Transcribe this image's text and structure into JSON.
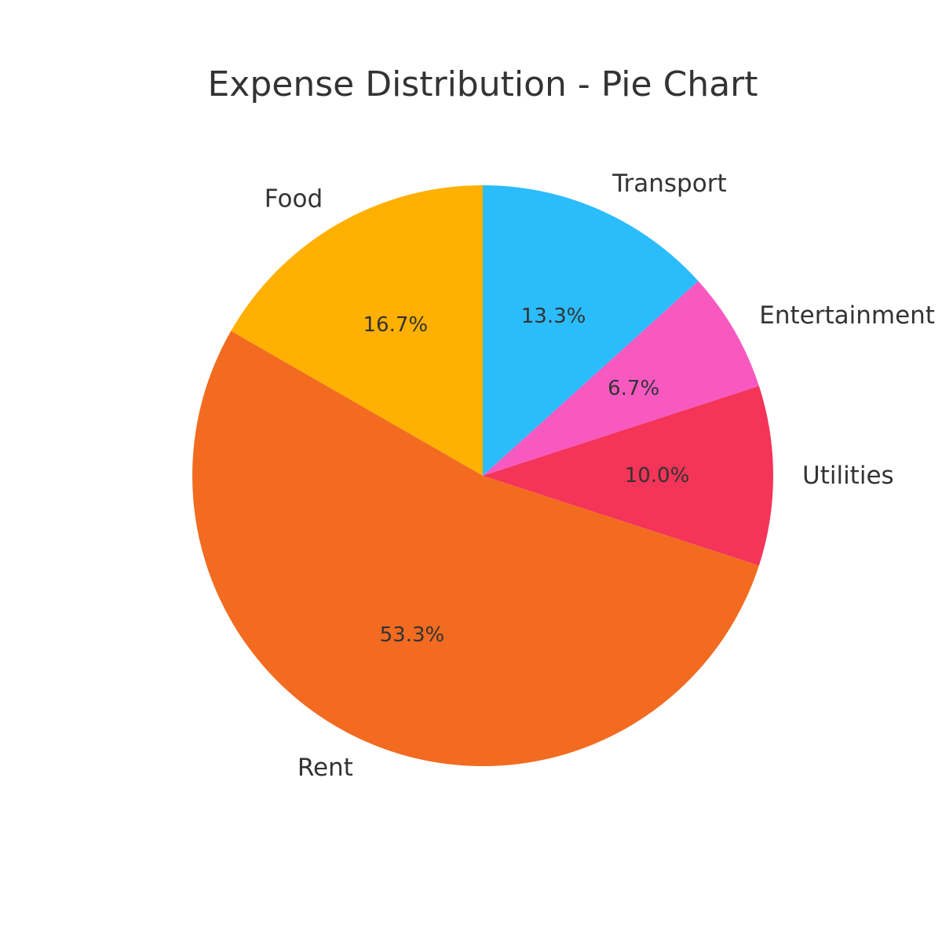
{
  "chart_data": {
    "type": "pie",
    "title": "Expense Distribution - Pie Chart",
    "start_angle_deg": 90,
    "direction": "counterclockwise",
    "categories": [
      "Rent",
      "Food",
      "Transport",
      "Utilities",
      "Entertainment"
    ],
    "slices": [
      {
        "label": "Food",
        "value": 16.7,
        "pct_label": "16.7%",
        "color": "#FFB000"
      },
      {
        "label": "Rent",
        "value": 53.3,
        "pct_label": "53.3%",
        "color": "#F26B21"
      },
      {
        "label": "Utilities",
        "value": 10.0,
        "pct_label": "10.0%",
        "color": "#F43458"
      },
      {
        "label": "Entertainment",
        "value": 6.7,
        "pct_label": "6.7%",
        "color": "#F759C1"
      },
      {
        "label": "Transport",
        "value": 13.3,
        "pct_label": "13.3%",
        "color": "#2BBCFC"
      }
    ]
  }
}
